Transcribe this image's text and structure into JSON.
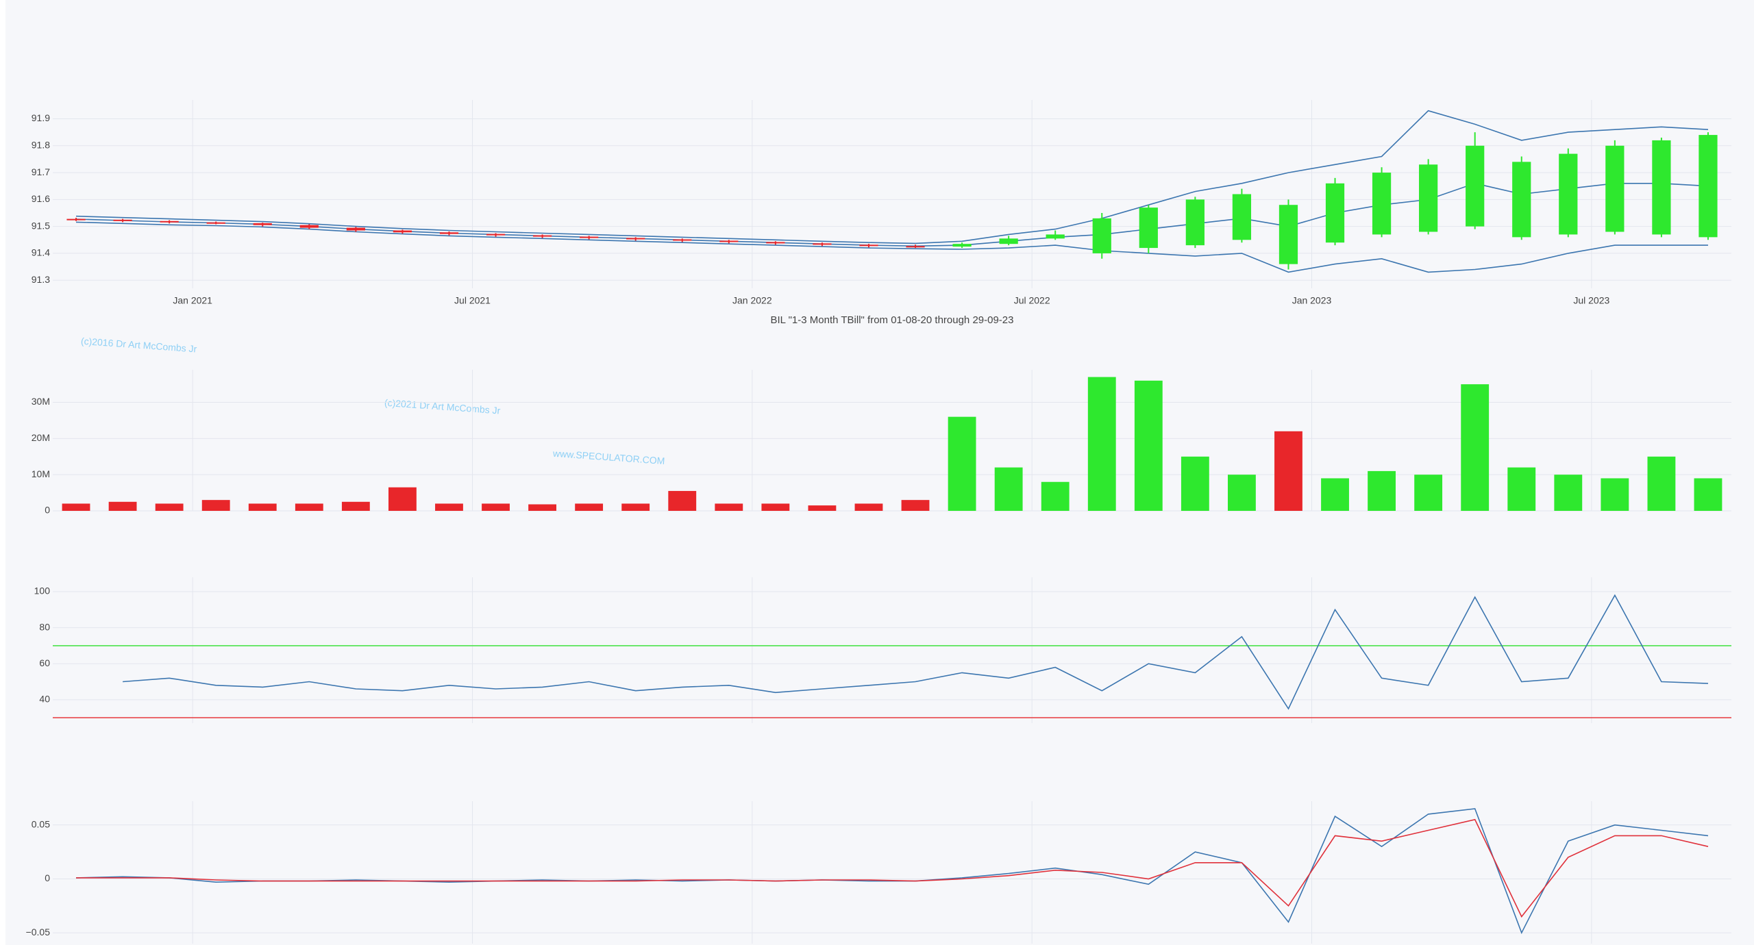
{
  "chart_data": [
    {
      "type": "candlestick",
      "title": "BIL \"1-3 Month TBill\" from 01-08-20 through 29-09-23",
      "annotations": [
        "(c)2016 Dr Art McCombs Jr",
        "(c)2021 Dr Art McCombs Jr",
        "www.SPECULATOR.COM"
      ],
      "x": [
        "2020-10",
        "2020-11",
        "2020-12",
        "2021-01",
        "2021-02",
        "2021-03",
        "2021-04",
        "2021-05",
        "2021-06",
        "2021-07",
        "2021-08",
        "2021-09",
        "2021-10",
        "2021-11",
        "2021-12",
        "2022-01",
        "2022-02",
        "2022-03",
        "2022-04",
        "2022-05",
        "2022-06",
        "2022-07",
        "2022-08",
        "2022-09",
        "2022-10",
        "2022-11",
        "2022-12",
        "2023-01",
        "2023-02",
        "2023-03",
        "2023-04",
        "2023-05",
        "2023-06",
        "2023-07",
        "2023-08",
        "2023-09"
      ],
      "open": [
        91.528,
        91.525,
        91.52,
        91.515,
        91.512,
        91.505,
        91.495,
        91.485,
        91.478,
        91.472,
        91.467,
        91.462,
        91.457,
        91.452,
        91.447,
        91.442,
        91.437,
        91.432,
        91.427,
        91.425,
        91.435,
        91.455,
        91.4,
        91.42,
        91.43,
        91.45,
        91.36,
        91.44,
        91.47,
        91.48,
        91.5,
        91.46,
        91.47,
        91.48,
        91.47,
        91.46
      ],
      "high": [
        91.532,
        91.528,
        91.523,
        91.518,
        91.514,
        91.508,
        91.498,
        91.488,
        91.481,
        91.475,
        91.47,
        91.465,
        91.46,
        91.455,
        91.45,
        91.445,
        91.44,
        91.435,
        91.432,
        91.44,
        91.465,
        91.485,
        91.55,
        91.58,
        91.61,
        91.64,
        91.6,
        91.68,
        91.72,
        91.75,
        91.85,
        91.76,
        91.79,
        91.82,
        91.83,
        91.85
      ],
      "low": [
        91.52,
        91.516,
        91.511,
        91.508,
        91.5,
        91.49,
        91.48,
        91.473,
        91.467,
        91.462,
        91.457,
        91.452,
        91.447,
        91.442,
        91.437,
        91.432,
        91.427,
        91.422,
        91.42,
        91.42,
        91.43,
        91.45,
        91.38,
        91.4,
        91.42,
        91.44,
        91.34,
        91.43,
        91.46,
        91.47,
        91.49,
        91.45,
        91.46,
        91.47,
        91.46,
        91.45
      ],
      "close": [
        91.525,
        91.52,
        91.515,
        91.512,
        91.505,
        91.495,
        91.485,
        91.478,
        91.472,
        91.467,
        91.462,
        91.457,
        91.452,
        91.447,
        91.442,
        91.437,
        91.432,
        91.427,
        91.425,
        91.435,
        91.455,
        91.47,
        91.53,
        91.57,
        91.6,
        91.62,
        91.58,
        91.66,
        91.7,
        91.73,
        91.8,
        91.74,
        91.77,
        91.8,
        91.82,
        91.84
      ],
      "increasing_color": "#2ee82e",
      "decreasing_color": "#e8262a",
      "bands": [
        {
          "color": "#3b75af",
          "values": [
            91.538,
            91.533,
            91.528,
            91.523,
            91.518,
            91.51,
            91.5,
            91.492,
            91.485,
            91.48,
            91.475,
            91.47,
            91.465,
            91.46,
            91.455,
            91.45,
            91.445,
            91.44,
            91.437,
            91.445,
            91.47,
            91.49,
            91.53,
            91.58,
            91.63,
            91.66,
            91.7,
            91.73,
            91.76,
            91.93,
            91.88,
            91.82,
            91.85,
            91.86,
            91.87,
            91.86
          ]
        },
        {
          "color": "#3b75af",
          "values": [
            91.527,
            91.522,
            91.517,
            91.513,
            91.508,
            91.5,
            91.49,
            91.482,
            91.475,
            91.47,
            91.465,
            91.46,
            91.455,
            91.45,
            91.445,
            91.44,
            91.435,
            91.43,
            91.427,
            91.43,
            91.445,
            91.46,
            91.47,
            91.49,
            91.51,
            91.53,
            91.5,
            91.55,
            91.58,
            91.6,
            91.66,
            91.62,
            91.64,
            91.66,
            91.66,
            91.65
          ]
        },
        {
          "color": "#3b75af",
          "values": [
            91.516,
            91.511,
            91.506,
            91.503,
            91.498,
            91.49,
            91.48,
            91.472,
            91.465,
            91.46,
            91.455,
            91.45,
            91.445,
            91.44,
            91.435,
            91.43,
            91.425,
            91.42,
            91.417,
            91.415,
            91.42,
            91.43,
            91.41,
            91.4,
            91.39,
            91.4,
            91.33,
            91.36,
            91.38,
            91.33,
            91.34,
            91.36,
            91.4,
            91.43,
            91.43,
            91.43
          ]
        }
      ],
      "xlim": [
        "2020-10",
        "2023-10"
      ],
      "xticks": [
        {
          "value": "2021-01",
          "label": "Jan 2021"
        },
        {
          "value": "2021-07",
          "label": "Jul 2021"
        },
        {
          "value": "2022-01",
          "label": "Jan 2022"
        },
        {
          "value": "2022-07",
          "label": "Jul 2022"
        },
        {
          "value": "2023-01",
          "label": "Jan 2023"
        },
        {
          "value": "2023-07",
          "label": "Jul 2023"
        }
      ],
      "ylim": [
        91.27,
        91.97
      ],
      "yticks": [
        91.3,
        91.4,
        91.5,
        91.6,
        91.7,
        91.8,
        91.9
      ],
      "grid": true
    },
    {
      "type": "bar",
      "values": [
        2000000,
        2500000,
        2000000,
        3000000,
        2000000,
        2000000,
        2500000,
        6500000,
        2000000,
        2000000,
        1800000,
        2000000,
        2000000,
        5500000,
        2000000,
        2000000,
        1500000,
        2000000,
        3000000,
        26000000,
        12000000,
        8000000,
        37000000,
        36000000,
        15000000,
        10000000,
        22000000,
        9000000,
        11000000,
        10000000,
        35000000,
        12000000,
        10000000,
        9000000,
        15000000,
        9000000
      ],
      "colors": [
        "#e8262a",
        "#e8262a",
        "#e8262a",
        "#e8262a",
        "#e8262a",
        "#e8262a",
        "#e8262a",
        "#e8262a",
        "#e8262a",
        "#e8262a",
        "#e8262a",
        "#e8262a",
        "#e8262a",
        "#e8262a",
        "#e8262a",
        "#e8262a",
        "#e8262a",
        "#e8262a",
        "#e8262a",
        "#2ee82e",
        "#2ee82e",
        "#2ee82e",
        "#2ee82e",
        "#2ee82e",
        "#2ee82e",
        "#2ee82e",
        "#e8262a",
        "#2ee82e",
        "#2ee82e",
        "#2ee82e",
        "#2ee82e",
        "#2ee82e",
        "#2ee82e",
        "#2ee82e",
        "#2ee82e",
        "#2ee82e"
      ],
      "ylim": [
        0,
        39000000
      ],
      "yticks": [
        0,
        {
          "value": 10000000,
          "label": "10M"
        },
        {
          "value": 20000000,
          "label": "20M"
        },
        {
          "value": 30000000,
          "label": "30M"
        }
      ],
      "grid": true
    },
    {
      "type": "line",
      "series": [
        {
          "color": "#3b75af",
          "values": [
            null,
            50,
            52,
            48,
            47,
            50,
            46,
            45,
            48,
            46,
            47,
            50,
            45,
            47,
            48,
            44,
            46,
            48,
            50,
            55,
            52,
            58,
            45,
            60,
            55,
            75,
            35,
            90,
            52,
            48,
            97,
            50,
            52,
            98,
            50,
            49
          ]
        }
      ],
      "hlines": [
        {
          "value": 70,
          "color": "#4be34b"
        },
        {
          "value": 30,
          "color": "#e8474b"
        }
      ],
      "ylim": [
        27,
        108
      ],
      "yticks": [
        40,
        60,
        80,
        100
      ],
      "grid": true
    },
    {
      "type": "line",
      "series": [
        {
          "color": "#3b75af",
          "values": [
            0.001,
            0.002,
            0.001,
            -0.003,
            -0.002,
            -0.002,
            -0.001,
            -0.002,
            -0.003,
            -0.002,
            -0.001,
            -0.002,
            -0.001,
            -0.002,
            -0.001,
            -0.002,
            -0.001,
            -0.002,
            -0.002,
            0.001,
            0.005,
            0.01,
            0.004,
            -0.005,
            0.025,
            0.015,
            -0.04,
            0.058,
            0.03,
            0.06,
            0.065,
            -0.05,
            0.035,
            0.05,
            0.045,
            0.04
          ]
        },
        {
          "color": "#e0303a",
          "values": [
            0.001,
            0.001,
            0.001,
            -0.001,
            -0.002,
            -0.002,
            -0.002,
            -0.002,
            -0.002,
            -0.002,
            -0.002,
            -0.002,
            -0.002,
            -0.001,
            -0.001,
            -0.002,
            -0.001,
            -0.001,
            -0.002,
            0,
            0.003,
            0.008,
            0.006,
            0,
            0.015,
            0.015,
            -0.025,
            0.04,
            0.035,
            0.045,
            0.055,
            -0.035,
            0.02,
            0.04,
            0.04,
            0.03
          ]
        }
      ],
      "ylim": [
        -0.06,
        0.072
      ],
      "yticks": [
        {
          "value": -0.05,
          "label": "−0.05"
        },
        0,
        0.05
      ],
      "grid": true
    }
  ]
}
